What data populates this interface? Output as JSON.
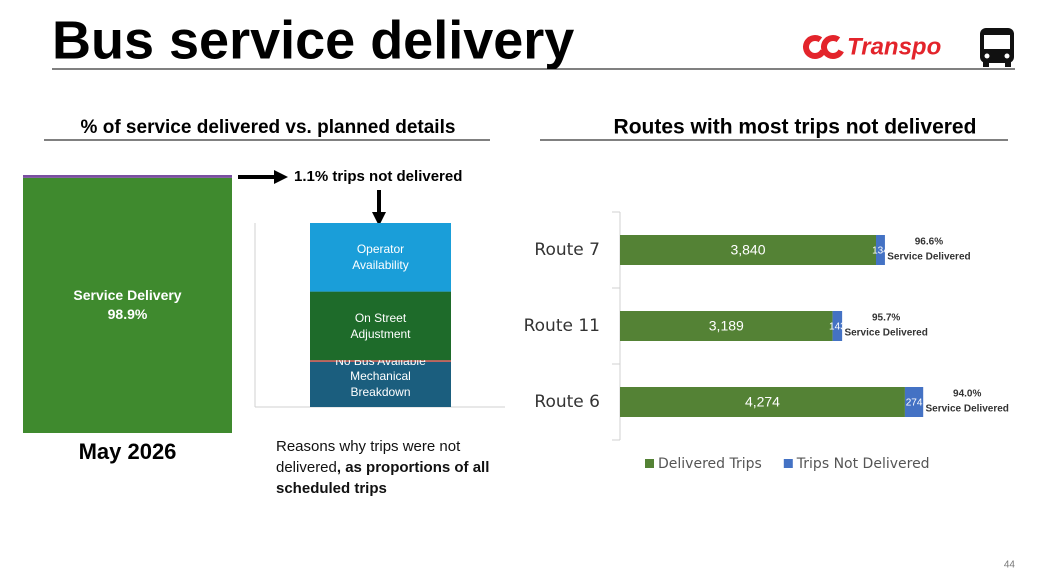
{
  "header": {
    "title": "Bus service delivery",
    "logo": "Transpo"
  },
  "page_number": "44",
  "chart_data": [
    {
      "type": "stacked-column",
      "title": "% of service delivered vs. planned details",
      "categories": [
        "May 2026"
      ],
      "ylim": [
        0,
        100
      ],
      "series": [
        {
          "name": "Service Delivery",
          "color": "#3f8a2e",
          "values": [
            98.9
          ],
          "value_labels": [
            "98.9%"
          ]
        },
        {
          "color": "#7a4fa0",
          "values": [
            1.1
          ]
        }
      ],
      "annotation": "1.1% trips not delivered"
    },
    {
      "type": "stacked-column",
      "ylim": [
        0,
        1.1
      ],
      "series": [
        {
          "name": "Mechanical Breakdown",
          "color": "#1b5e7e",
          "values": [
            0.27
          ]
        },
        {
          "name": "No Bus Available",
          "color": "#c0504d",
          "values": [
            0.01
          ]
        },
        {
          "name": "On Street Adjustment",
          "color": "#1e6b2a",
          "values": [
            0.41
          ]
        },
        {
          "name": "Operator Availability",
          "color": "#1a9ed9",
          "values": [
            0.41
          ]
        }
      ],
      "caption": [
        "Reasons why trips were not delivered",
        ", as proportions of all scheduled  trips"
      ]
    },
    {
      "type": "stacked-bar",
      "title": "Routes with most trips not delivered",
      "categories": [
        "Route 7",
        "Route 11",
        "Route 6"
      ],
      "xlim": [
        0,
        6000
      ],
      "series": [
        {
          "name": "Delivered Trips",
          "color": "#548235",
          "values": [
            3840,
            3189,
            4274
          ],
          "value_labels": [
            "3,840",
            "3,189",
            "4,274"
          ]
        },
        {
          "name": "Trips Not Delivered",
          "color": "#4472c4",
          "values": [
            134,
            143,
            274
          ]
        }
      ],
      "annotations": {
        "values": [
          96.6,
          95.7,
          94.0
        ],
        "labels": [
          "96.6%",
          "95.7%",
          "94.0%"
        ],
        "caption": "Service Delivered"
      },
      "legend": "bottom"
    }
  ]
}
